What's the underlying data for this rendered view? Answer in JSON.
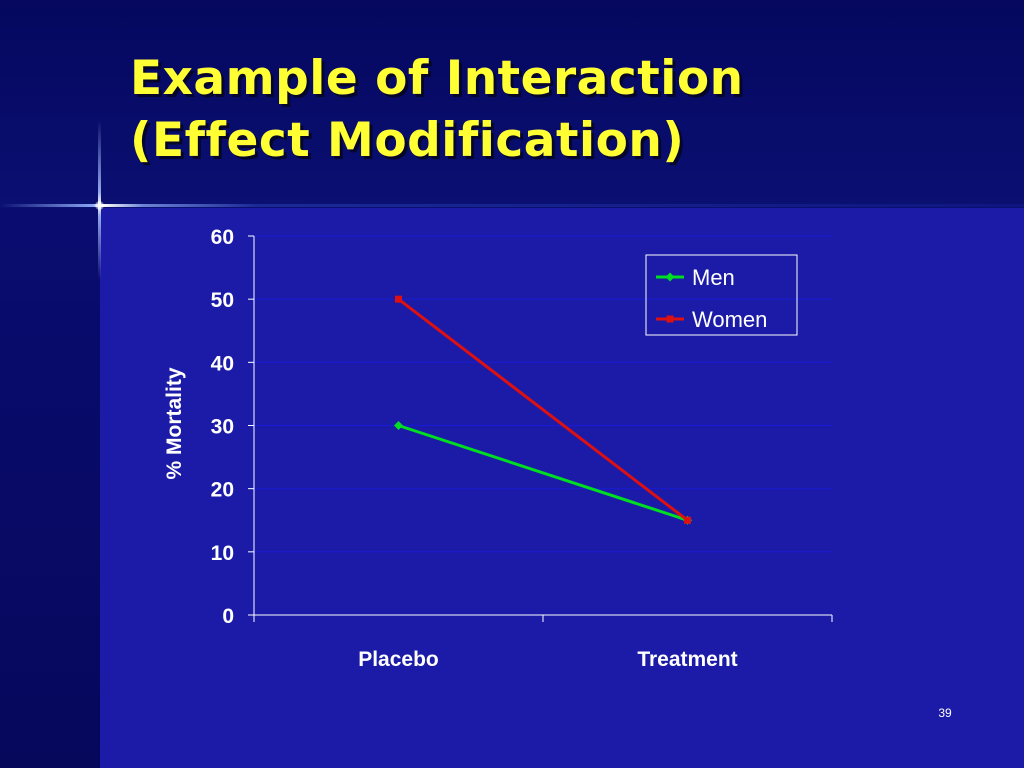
{
  "slide": {
    "title_line1": "Example of Interaction",
    "title_line2": "(Effect Modification)",
    "page_number": "39"
  },
  "colors": {
    "title": "#ffff33",
    "men": "#00dd22",
    "women": "#dd1111",
    "gridline": "#1a1ad0",
    "axis": "#ffffff"
  },
  "chart_data": {
    "type": "line",
    "title": "",
    "xlabel": "",
    "ylabel": "% Mortality",
    "categories": [
      "Placebo",
      "Treatment"
    ],
    "series": [
      {
        "name": "Men",
        "values": [
          30,
          15
        ],
        "marker": "diamond"
      },
      {
        "name": "Women",
        "values": [
          50,
          15
        ],
        "marker": "square"
      }
    ],
    "ylim": [
      0,
      60
    ],
    "yticks": [
      0,
      10,
      20,
      30,
      40,
      50,
      60
    ],
    "grid": true,
    "legend": "top-right"
  }
}
